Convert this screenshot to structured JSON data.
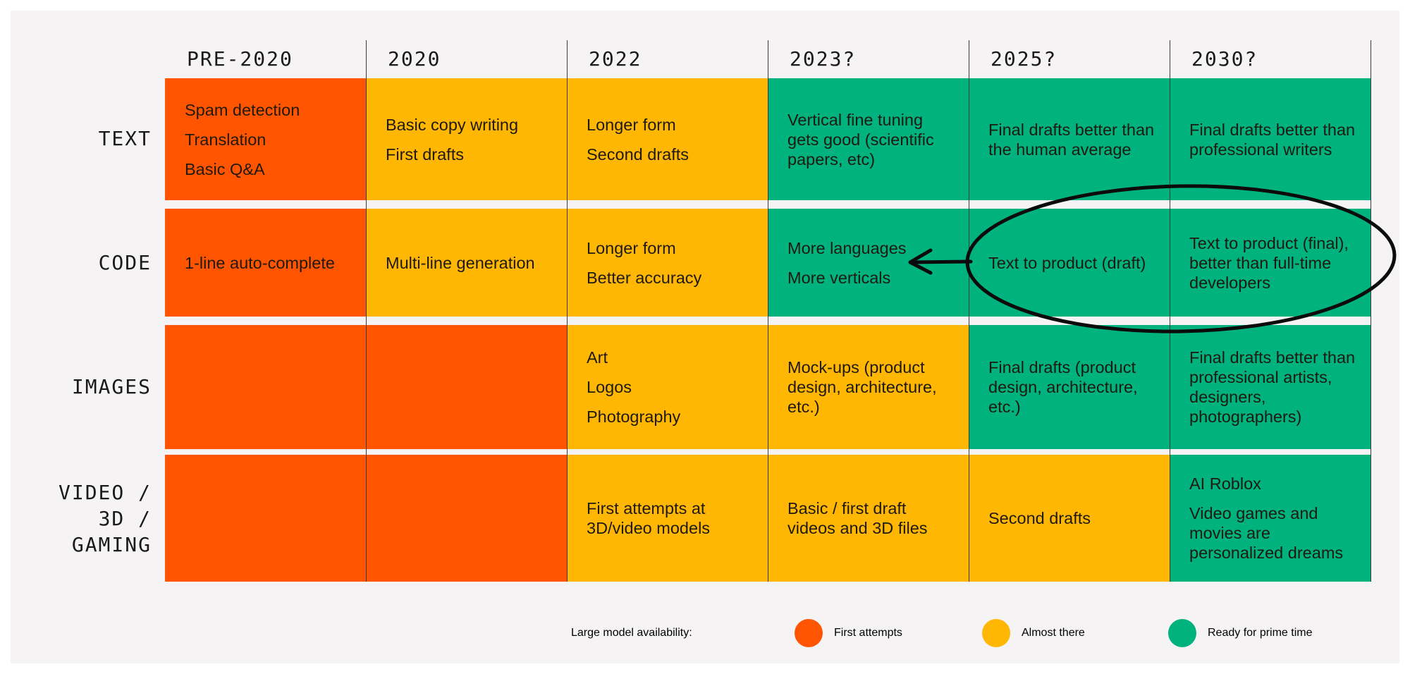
{
  "columns": [
    "PRE-2020",
    "2020",
    "2022",
    "2023?",
    "2025?",
    "2030?"
  ],
  "rows": [
    {
      "label": "TEXT",
      "cells": [
        {
          "status": "first",
          "lines": [
            "Spam detection",
            "Translation",
            "Basic Q&A"
          ]
        },
        {
          "status": "almost",
          "lines": [
            "Basic copy writing",
            "First drafts"
          ]
        },
        {
          "status": "almost",
          "lines": [
            "Longer form",
            "Second drafts"
          ]
        },
        {
          "status": "ready",
          "lines": [
            "Vertical fine tuning gets good (scientific papers, etc)"
          ]
        },
        {
          "status": "ready",
          "lines": [
            "Final drafts better than the human average"
          ]
        },
        {
          "status": "ready",
          "lines": [
            "Final drafts better than professional writers"
          ]
        }
      ]
    },
    {
      "label": "CODE",
      "cells": [
        {
          "status": "first",
          "lines": [
            "1-line auto-complete"
          ]
        },
        {
          "status": "almost",
          "lines": [
            "Multi-line generation"
          ]
        },
        {
          "status": "almost",
          "lines": [
            "Longer form",
            "Better accuracy"
          ]
        },
        {
          "status": "ready",
          "lines": [
            "More languages",
            "More verticals"
          ]
        },
        {
          "status": "ready",
          "lines": [
            "Text to product (draft)"
          ]
        },
        {
          "status": "ready",
          "lines": [
            "Text to product (final), better than full-time developers"
          ]
        }
      ]
    },
    {
      "label": "IMAGES",
      "cells": [
        {
          "status": "first",
          "lines": []
        },
        {
          "status": "first",
          "lines": []
        },
        {
          "status": "almost",
          "lines": [
            "Art",
            "Logos",
            "Photography"
          ]
        },
        {
          "status": "almost",
          "lines": [
            "Mock-ups (product design, architecture, etc.)"
          ]
        },
        {
          "status": "ready",
          "lines": [
            "Final drafts (product design, architecture, etc.)"
          ]
        },
        {
          "status": "ready",
          "lines": [
            "Final drafts better than professional artists, designers, photographers)"
          ]
        }
      ]
    },
    {
      "label": "VIDEO /\n3D /\nGAMING",
      "cells": [
        {
          "status": "first",
          "lines": []
        },
        {
          "status": "first",
          "lines": []
        },
        {
          "status": "almost",
          "lines": [
            "First attempts at 3D/video models"
          ]
        },
        {
          "status": "almost",
          "lines": [
            "Basic / first draft videos and 3D files"
          ]
        },
        {
          "status": "almost",
          "lines": [
            "Second drafts"
          ]
        },
        {
          "status": "ready",
          "lines": [
            "AI Roblox",
            "Video games and movies are personalized dreams"
          ]
        }
      ]
    }
  ],
  "legend": {
    "title": "Large model availability:",
    "items": [
      {
        "key": "first",
        "label": "First attempts",
        "color": "#ff5500"
      },
      {
        "key": "almost",
        "label": "Almost there",
        "color": "#ffb703"
      },
      {
        "key": "ready",
        "label": "Ready for prime time",
        "color": "#00b27e"
      }
    ]
  },
  "colors": {
    "first": "#ff5500",
    "almost": "#ffb703",
    "ready": "#00b27e",
    "background": "#f5f3f3"
  }
}
